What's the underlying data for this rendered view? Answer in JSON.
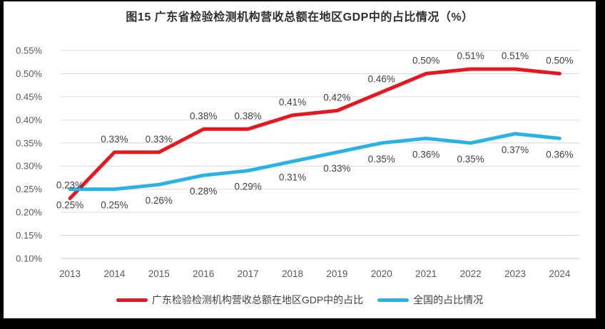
{
  "frame": {
    "background": "#000000",
    "panel_background": "#ffffff"
  },
  "chart_data": {
    "type": "line",
    "title": "图15  广东省检验检测机构营收总额在地区GDP中的占比情况（%）",
    "categories": [
      "2013",
      "2014",
      "2015",
      "2016",
      "2017",
      "2018",
      "2019",
      "2020",
      "2021",
      "2022",
      "2023",
      "2024"
    ],
    "series": [
      {
        "name": "广东检验检测机构营收总额在地区GDP中的占比",
        "color": "#e8171f",
        "values": [
          0.23,
          0.33,
          0.33,
          0.38,
          0.38,
          0.41,
          0.42,
          0.46,
          0.5,
          0.51,
          0.51,
          0.5
        ],
        "point_labels": [
          "0.23%",
          "0.33%",
          "0.33%",
          "0.38%",
          "0.38%",
          "0.41%",
          "0.42%",
          "0.46%",
          "0.50%",
          "0.51%",
          "0.51%",
          "0.50%"
        ],
        "label_position": "above"
      },
      {
        "name": "全国的占比情况",
        "color": "#29b2e5",
        "values": [
          0.25,
          0.25,
          0.26,
          0.28,
          0.29,
          0.31,
          0.33,
          0.35,
          0.36,
          0.35,
          0.37,
          0.36
        ],
        "point_labels": [
          "0.25%",
          "0.25%",
          "0.26%",
          "0.28%",
          "0.29%",
          "0.31%",
          "0.33%",
          "0.35%",
          "0.36%",
          "0.35%",
          "0.37%",
          "0.36%"
        ],
        "label_position": "below"
      }
    ],
    "ylim": [
      0.1,
      0.55
    ],
    "ytick_labels": [
      "0.55%",
      "0.50%",
      "0.45%",
      "0.40%",
      "0.35%",
      "0.30%",
      "0.25%",
      "0.20%",
      "0.15%",
      "0.10%"
    ],
    "grid": true,
    "legend_position": "bottom",
    "xlabel": "",
    "ylabel": "",
    "axis_text_color": "#595959",
    "point_label_color": "#3f3f3f",
    "gridline_color": "#d9d9d9",
    "axisline_color": "#c3c3c3"
  }
}
